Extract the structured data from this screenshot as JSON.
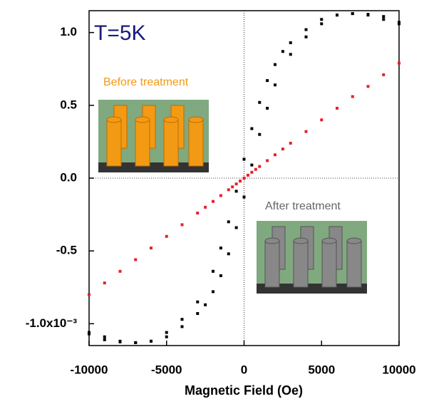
{
  "chart_data": {
    "type": "scatter",
    "x_label": "Magnetic Field (Oe)",
    "annotations": [
      "T=5K",
      "Before treatment",
      "After treatment"
    ],
    "xlim": [
      -10000,
      10000
    ],
    "xticks": [
      -10000,
      -5000,
      0,
      5000,
      10000
    ],
    "ylim": [
      -1.15,
      1.15
    ],
    "yticks": [
      {
        "value": 1,
        "label": "1.0"
      },
      0.5,
      {
        "value": 0,
        "label": "0.0"
      },
      -0.5,
      {
        "value": -1,
        "label": "-1.0x10⁻³"
      }
    ],
    "zero_lines": true,
    "series": [
      {
        "color": "#000000",
        "x": [
          -10000,
          -9000,
          -8000,
          -7000,
          -6000,
          -5000,
          -4000,
          -3000,
          -2000,
          -1500,
          -1000,
          -500,
          0,
          500,
          1000,
          1500,
          2000,
          2500,
          3000,
          4000,
          5000,
          6000,
          7000,
          8000,
          9000,
          10000,
          -10000,
          -9000,
          -8000,
          -7000,
          -6000,
          -5000,
          -4000,
          -3000,
          -2500,
          -2000,
          -1500,
          -1000,
          -500,
          0,
          500,
          1000,
          1500,
          2000,
          3000,
          4000,
          5000,
          6000,
          7000,
          8000,
          9000,
          10000
        ],
        "values": [
          -1.07,
          -1.11,
          -1.125,
          -1.13,
          -1.12,
          -1.06,
          -0.97,
          -0.85,
          -0.64,
          -0.48,
          -0.3,
          -0.09,
          0.13,
          0.34,
          0.52,
          0.67,
          0.78,
          0.87,
          0.93,
          1.02,
          1.09,
          1.12,
          1.13,
          1.12,
          1.09,
          1.06,
          -1.06,
          -1.09,
          -1.12,
          -1.13,
          -1.12,
          -1.09,
          -1.02,
          -0.93,
          -0.87,
          -0.78,
          -0.67,
          -0.52,
          -0.34,
          -0.13,
          0.09,
          0.3,
          0.48,
          0.64,
          0.85,
          0.97,
          1.06,
          1.12,
          1.13,
          1.125,
          1.11,
          1.07
        ]
      },
      {
        "color": "#e8202a",
        "x": [
          -10000,
          -9000,
          -8000,
          -7000,
          -6000,
          -5000,
          -4000,
          -3000,
          -2500,
          -2000,
          -1500,
          -1000,
          -750,
          -500,
          -250,
          0,
          250,
          500,
          750,
          1000,
          1500,
          2000,
          2500,
          3000,
          4000,
          5000,
          6000,
          7000,
          8000,
          9000,
          10000
        ],
        "values": [
          -0.8,
          -0.72,
          -0.64,
          -0.56,
          -0.48,
          -0.4,
          -0.32,
          -0.24,
          -0.2,
          -0.16,
          -0.12,
          -0.08,
          -0.06,
          -0.04,
          -0.02,
          0,
          0.02,
          0.04,
          0.06,
          0.08,
          0.12,
          0.16,
          0.2,
          0.24,
          0.32,
          0.4,
          0.48,
          0.56,
          0.63,
          0.71,
          0.79
        ]
      }
    ]
  }
}
